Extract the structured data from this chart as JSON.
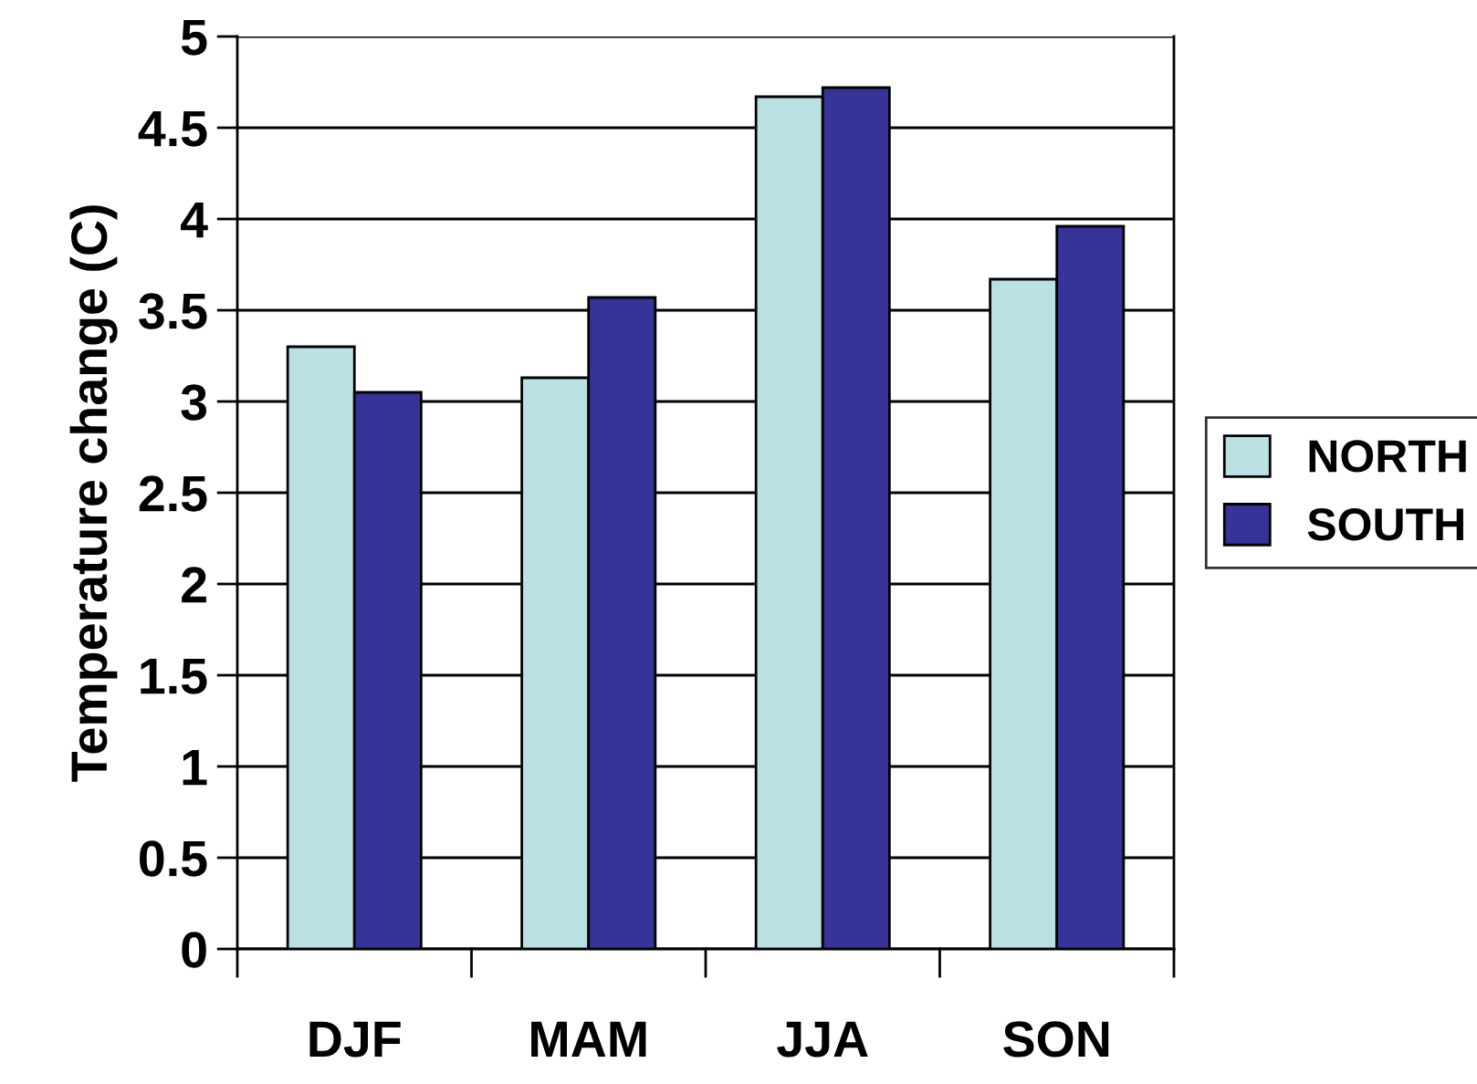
{
  "chart_data": {
    "type": "bar",
    "ylabel": "Temperature change (C)",
    "categories": [
      "DJF",
      "MAM",
      "JJA",
      "SON"
    ],
    "series": [
      {
        "name": "NORTH",
        "color": "#b9e0e3",
        "values": [
          3.3,
          3.13,
          4.67,
          3.67
        ]
      },
      {
        "name": "SOUTH",
        "color": "#363399",
        "values": [
          3.05,
          3.57,
          4.72,
          3.96
        ]
      }
    ],
    "ylim": [
      0,
      5
    ],
    "yticks": [
      0,
      0.5,
      1,
      1.5,
      2,
      2.5,
      3,
      3.5,
      4,
      4.5,
      5
    ],
    "grid": "y",
    "legend": "right"
  }
}
